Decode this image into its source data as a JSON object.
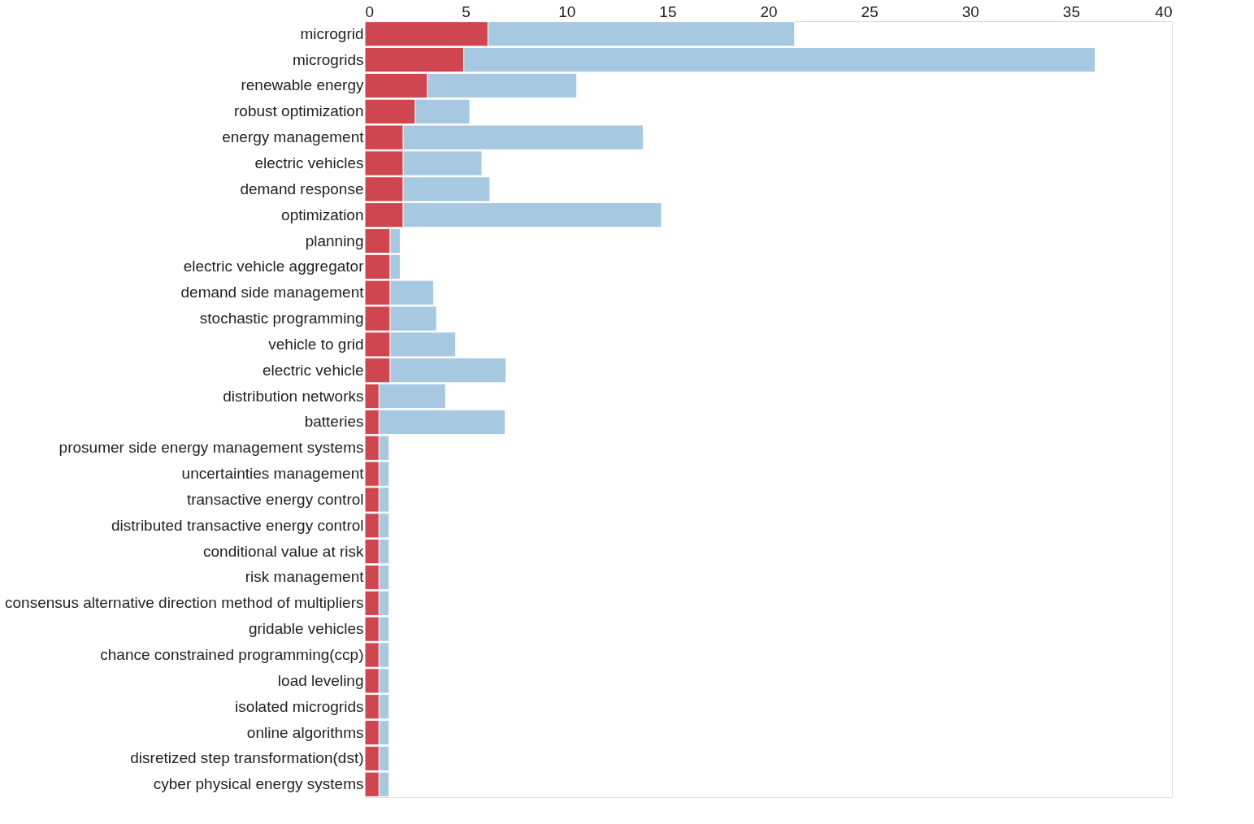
{
  "chart_data": {
    "type": "bar",
    "orientation": "horizontal",
    "stacked": true,
    "categories": [
      "microgrid",
      "microgrids",
      "renewable energy",
      "robust optimization",
      "energy management",
      "electric vehicles",
      "demand response",
      "optimization",
      "planning",
      "electric vehicle aggregator",
      "demand side management",
      "stochastic programming",
      "vehicle to grid",
      "electric vehicle",
      "distribution networks",
      "batteries",
      "prosumer side energy management systems",
      "uncertainties management",
      "transactive energy control",
      "distributed transactive energy control",
      "conditional value at risk",
      "risk management",
      "consensus alternative direction method of multipliers",
      "gridable vehicles",
      "chance constrained programming(ccp)",
      "load leveling",
      "isolated microgrids",
      "online algorithms",
      "disretized step transformation(dst)",
      "cyber physical energy systems"
    ],
    "series": [
      {
        "color": "#d04650",
        "values": [
          6.1,
          4.9,
          3.1,
          2.5,
          1.9,
          1.9,
          1.9,
          1.9,
          1.25,
          1.25,
          1.25,
          1.25,
          1.25,
          1.25,
          0.7,
          0.7,
          0.7,
          0.7,
          0.7,
          0.7,
          0.7,
          0.7,
          0.7,
          0.7,
          0.7,
          0.7,
          0.7,
          0.7,
          0.7,
          0.7
        ]
      },
      {
        "color": "#a6c8e0",
        "values": [
          15.2,
          31.3,
          7.4,
          2.7,
          11.9,
          3.9,
          4.3,
          12.8,
          0.5,
          0.5,
          2.15,
          2.3,
          3.25,
          5.75,
          3.3,
          6.25,
          0.5,
          0.5,
          0.5,
          0.5,
          0.5,
          0.5,
          0.5,
          0.5,
          0.5,
          0.5,
          0.5,
          0.5,
          0.5,
          0.5
        ]
      }
    ],
    "xlim": [
      0,
      40
    ],
    "xticks": [
      0,
      5,
      10,
      15,
      20,
      25,
      30,
      35,
      40
    ],
    "grid": false,
    "legend": false
  }
}
